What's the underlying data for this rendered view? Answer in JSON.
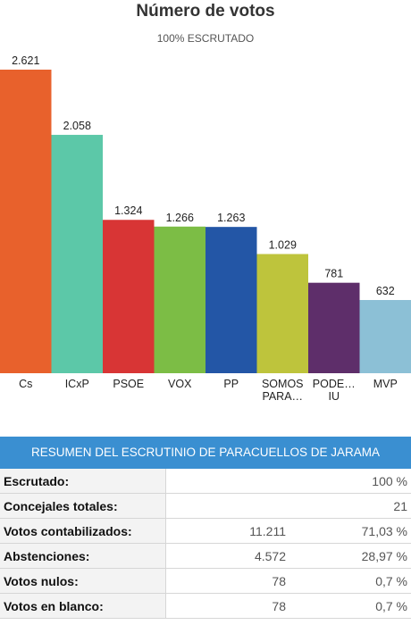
{
  "chart_data": {
    "type": "bar",
    "title": "Número de votos",
    "subtitle": "100% ESCRUTADO",
    "categories": [
      "Cs",
      "ICxP",
      "PSOE",
      "VOX",
      "PP",
      "SOMOS PARA…",
      "PODE… IU",
      "MVP"
    ],
    "category_lines": [
      [
        "Cs"
      ],
      [
        "ICxP"
      ],
      [
        "PSOE"
      ],
      [
        "VOX"
      ],
      [
        "PP"
      ],
      [
        "SOMOS",
        "PARA…"
      ],
      [
        "PODE…",
        "IU"
      ],
      [
        "MVP"
      ]
    ],
    "values": [
      2621,
      2058,
      1324,
      1266,
      1263,
      1029,
      781,
      632
    ],
    "value_labels": [
      "2.621",
      "2.058",
      "1.324",
      "1.266",
      "1.263",
      "1.029",
      "781",
      "632"
    ],
    "colors": [
      "#e8612c",
      "#5cc8a8",
      "#d83535",
      "#7cbd45",
      "#2356a6",
      "#bec43c",
      "#5e2e6a",
      "#8cc0d6"
    ],
    "ylim": [
      0,
      2621
    ],
    "grid": false,
    "legend": "none"
  },
  "summary": {
    "header": "RESUMEN DEL ESCRUTINIO DE PARACUELLOS DE JARAMA",
    "rows": [
      {
        "label": "Escrutado:",
        "value": "",
        "percent": "100 %"
      },
      {
        "label": "Concejales totales:",
        "value": "",
        "percent": "21"
      },
      {
        "label": "Votos contabilizados:",
        "value": "11.211",
        "percent": "71,03 %"
      },
      {
        "label": "Abstenciones:",
        "value": "4.572",
        "percent": "28,97 %"
      },
      {
        "label": "Votos nulos:",
        "value": "78",
        "percent": "0,7 %"
      },
      {
        "label": "Votos en blanco:",
        "value": "78",
        "percent": "0,7 %"
      }
    ]
  }
}
